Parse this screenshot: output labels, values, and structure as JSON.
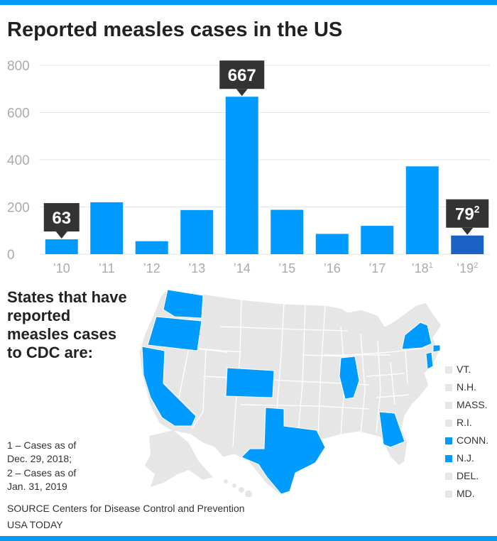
{
  "title": "Reported measles cases in the US",
  "colors": {
    "rule": "#009bff",
    "bar": "#009bff",
    "bar_highlight": "#1a61c4",
    "callout": "#333333",
    "grid": "#e6e6e6",
    "axis_text": "#aaaaaa",
    "state_reported": "#009bff",
    "state_other": "#e6e6e6"
  },
  "chart_data": {
    "type": "bar",
    "categories": [
      "’10",
      "’11",
      "’12",
      "’13",
      "’14",
      "’15",
      "’16",
      "’17",
      "’18",
      "’19"
    ],
    "category_superscripts": [
      "",
      "",
      "",
      "",
      "",
      "",
      "",
      "",
      "1",
      "2"
    ],
    "values": [
      63,
      220,
      55,
      187,
      667,
      188,
      86,
      120,
      372,
      79
    ],
    "highlight_index": 9,
    "ylim": [
      0,
      800
    ],
    "yticks": [
      0,
      200,
      400,
      600,
      800
    ],
    "grid": true,
    "callouts": [
      {
        "index": 0,
        "text": "63",
        "sup": ""
      },
      {
        "index": 4,
        "text": "667",
        "sup": ""
      },
      {
        "index": 9,
        "text": "79",
        "sup": "2"
      }
    ],
    "title": "Reported measles cases in the US",
    "xlabel": "",
    "ylabel": ""
  },
  "map": {
    "heading": "States that have reported measles cases to CDC are:",
    "reported_states": [
      "WA",
      "OR",
      "CA",
      "CO",
      "TX",
      "IL",
      "GA",
      "NY",
      "CONN.",
      "N.J."
    ]
  },
  "legend": {
    "items": [
      {
        "label": "VT.",
        "reported": false
      },
      {
        "label": "N.H.",
        "reported": false
      },
      {
        "label": "MASS.",
        "reported": false
      },
      {
        "label": "R.I.",
        "reported": false
      },
      {
        "label": "CONN.",
        "reported": true
      },
      {
        "label": "N.J.",
        "reported": true
      },
      {
        "label": "DEL.",
        "reported": false
      },
      {
        "label": "MD.",
        "reported": false
      }
    ]
  },
  "footnotes": {
    "note1_line1": "1 – Cases as of",
    "note1_line2": "Dec. 29, 2018;",
    "note2_line1": "2 – Cases as of",
    "note2_line2": "Jan. 31, 2019"
  },
  "source": "SOURCE Centers for Disease Control and Prevention",
  "credit": "USA TODAY"
}
